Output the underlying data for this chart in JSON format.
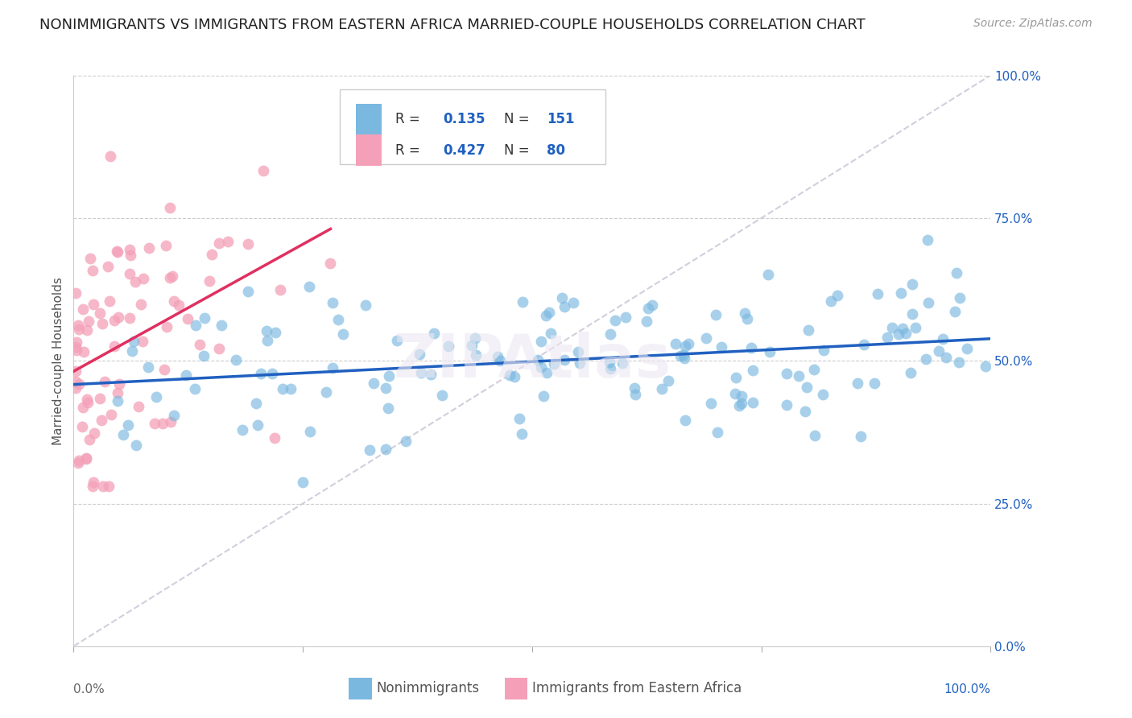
{
  "title": "NONIMMIGRANTS VS IMMIGRANTS FROM EASTERN AFRICA MARRIED-COUPLE HOUSEHOLDS CORRELATION CHART",
  "source": "Source: ZipAtlas.com",
  "ylabel": "Married-couple Households",
  "r_nonimm": 0.135,
  "n_nonimm": 151,
  "r_imm": 0.427,
  "n_imm": 80,
  "ytick_labels": [
    "0.0%",
    "25.0%",
    "50.0%",
    "75.0%",
    "100.0%"
  ],
  "ytick_positions": [
    0.0,
    0.25,
    0.5,
    0.75,
    1.0
  ],
  "blue_color": "#7ab8e0",
  "pink_color": "#f4a0b8",
  "blue_line_color": "#2060c0",
  "pink_line_color": "#e03060",
  "diagonal_color": "#d0c8d8",
  "text_color_blue": "#2060c0",
  "text_color_dark": "#333333",
  "background": "#ffffff",
  "legend_label_nonimm": "Nonimmigrants",
  "legend_label_imm": "Immigrants from Eastern Africa",
  "title_fontsize": 13,
  "source_fontsize": 10,
  "axis_label_fontsize": 11,
  "tick_fontsize": 11,
  "legend_fontsize": 12,
  "watermark": "ZIPAtlas"
}
